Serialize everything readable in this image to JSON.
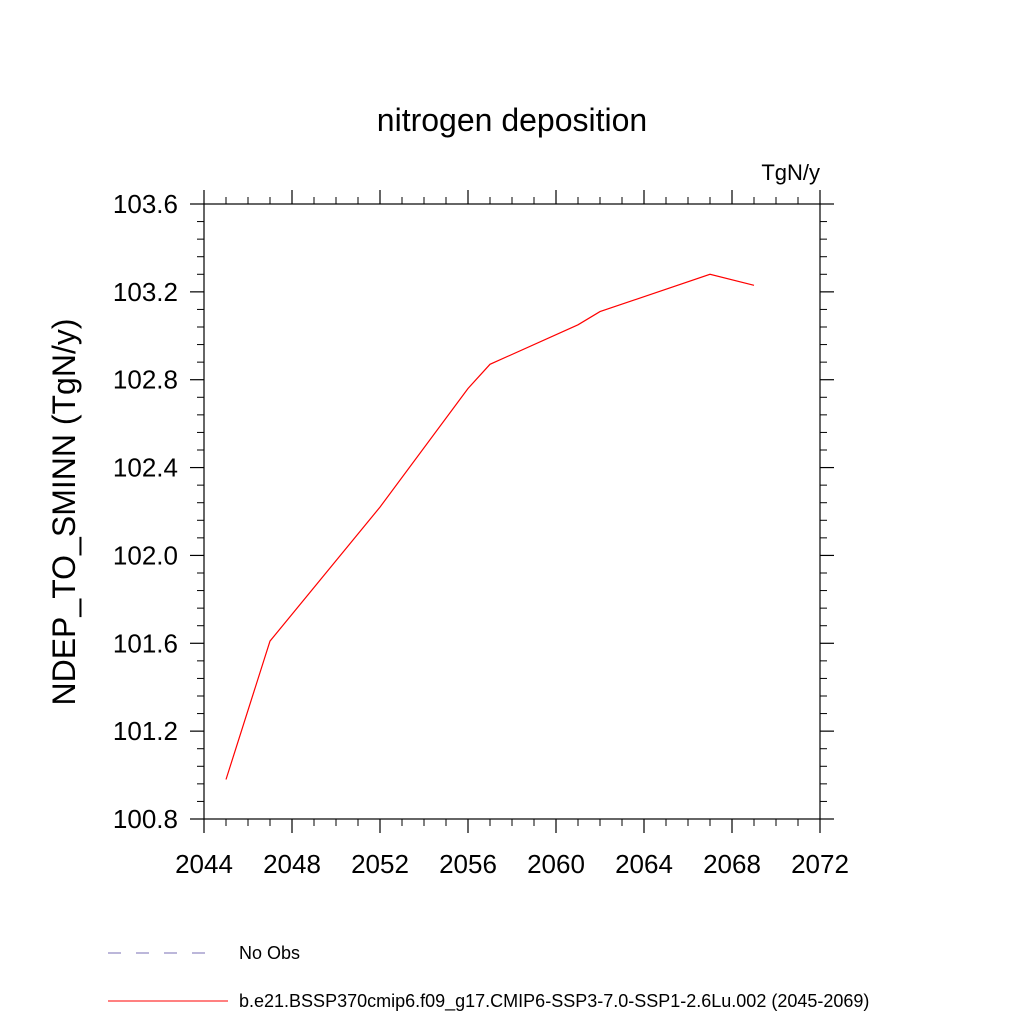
{
  "chart_data": {
    "type": "line",
    "title": "nitrogen deposition",
    "units_label": "TgN/y",
    "ylabel": "NDEP_TO_SMINN  (TgN/y)",
    "xlabel": "",
    "xlim": [
      2044,
      2072
    ],
    "ylim": [
      100.8,
      103.6
    ],
    "x_ticks": [
      "2044",
      "2048",
      "2052",
      "2056",
      "2060",
      "2064",
      "2068",
      "2072"
    ],
    "y_ticks": [
      "100.8",
      "101.2",
      "101.6",
      "102.0",
      "102.4",
      "102.8",
      "103.2",
      "103.6"
    ],
    "grid": false,
    "legend_placement": "bottom",
    "series": [
      {
        "name": "No Obs",
        "color": "#7a6fb5",
        "dash": "dashed",
        "x": [],
        "y": []
      },
      {
        "name": "b.e21.BSSP370cmip6.f09_g17.CMIP6-SSP3-7.0-SSP1-2.6Lu.002 (2045-2069)",
        "color": "#ff0000",
        "dash": "solid",
        "x": [
          2045,
          2047,
          2052,
          2056,
          2057,
          2061,
          2062,
          2067,
          2069
        ],
        "y": [
          100.98,
          101.61,
          102.22,
          102.76,
          102.87,
          103.05,
          103.11,
          103.28,
          103.23
        ]
      }
    ]
  }
}
